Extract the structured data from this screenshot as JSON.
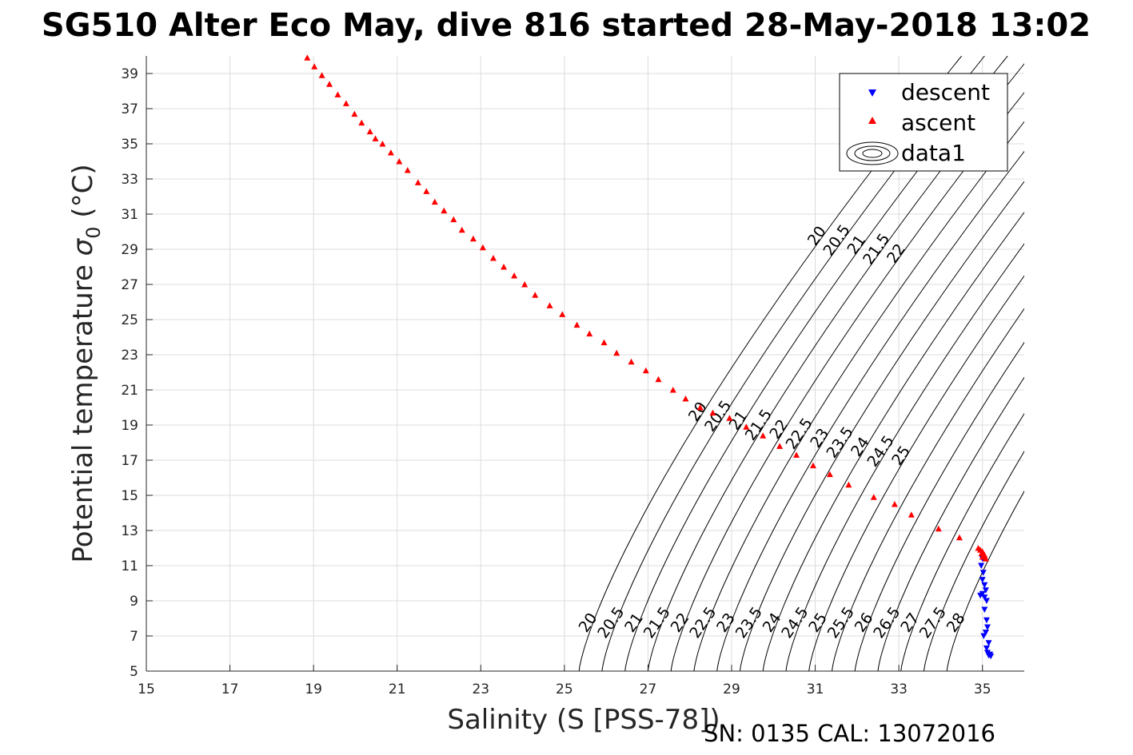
{
  "figure": {
    "title": "SG510 Alter Eco May, dive 816 started 28-May-2018 13:02",
    "footer": "SN: 0135  CAL: 13072016"
  },
  "chart_data": {
    "type": "scatter",
    "xlabel": "Salinity (S [PSS-78])",
    "ylabel_prefix": "Potential temperature ",
    "ylabel_symbol": "σ",
    "ylabel_subscript": "0",
    "ylabel_suffix": " (°C)",
    "xlim": [
      15,
      36
    ],
    "ylim": [
      5,
      40
    ],
    "xticks": [
      15,
      17,
      19,
      21,
      23,
      25,
      27,
      29,
      31,
      33,
      35
    ],
    "yticks": [
      5,
      7,
      9,
      11,
      13,
      15,
      17,
      19,
      21,
      23,
      25,
      27,
      29,
      31,
      33,
      35,
      37,
      39
    ],
    "grid": true,
    "legend_position": "top-right",
    "colors": {
      "descent": "#0000ff",
      "ascent": "#ff0000",
      "contour": "#000000",
      "grid": "#dcdcdc"
    },
    "series": [
      {
        "name": "descent",
        "marker": "triangle-down",
        "color": "#0000ff",
        "points": [
          [
            35.0,
            11.4
          ],
          [
            34.97,
            11.0
          ],
          [
            35.02,
            10.6
          ],
          [
            35.0,
            10.2
          ],
          [
            35.05,
            9.9
          ],
          [
            35.08,
            9.6
          ],
          [
            35.0,
            9.4
          ],
          [
            34.95,
            9.3
          ],
          [
            35.05,
            9.2
          ],
          [
            35.1,
            9.0
          ],
          [
            35.05,
            8.5
          ],
          [
            35.1,
            7.9
          ],
          [
            35.12,
            7.5
          ],
          [
            35.08,
            7.2
          ],
          [
            35.03,
            7.0
          ],
          [
            35.15,
            6.6
          ],
          [
            35.1,
            6.3
          ],
          [
            35.12,
            6.05
          ],
          [
            35.18,
            5.95
          ],
          [
            35.15,
            5.9
          ],
          [
            35.2,
            5.85
          ]
        ]
      },
      {
        "name": "ascent",
        "marker": "triangle-up",
        "color": "#ff0000",
        "points": [
          [
            18.85,
            39.9
          ],
          [
            19.02,
            39.4
          ],
          [
            19.2,
            38.9
          ],
          [
            19.38,
            38.4
          ],
          [
            19.58,
            37.8
          ],
          [
            19.78,
            37.3
          ],
          [
            19.98,
            36.7
          ],
          [
            20.15,
            36.2
          ],
          [
            20.35,
            35.7
          ],
          [
            20.48,
            35.3
          ],
          [
            20.65,
            35.0
          ],
          [
            20.85,
            34.5
          ],
          [
            21.05,
            34.0
          ],
          [
            21.25,
            33.5
          ],
          [
            21.5,
            32.8
          ],
          [
            21.7,
            32.3
          ],
          [
            21.9,
            31.7
          ],
          [
            22.12,
            31.2
          ],
          [
            22.35,
            30.7
          ],
          [
            22.55,
            30.1
          ],
          [
            22.82,
            29.6
          ],
          [
            23.05,
            29.1
          ],
          [
            23.3,
            28.5
          ],
          [
            23.55,
            28.0
          ],
          [
            23.8,
            27.5
          ],
          [
            24.05,
            27.0
          ],
          [
            24.3,
            26.4
          ],
          [
            24.65,
            25.8
          ],
          [
            24.95,
            25.3
          ],
          [
            25.3,
            24.7
          ],
          [
            25.6,
            24.2
          ],
          [
            25.95,
            23.7
          ],
          [
            26.25,
            23.1
          ],
          [
            26.6,
            22.6
          ],
          [
            26.95,
            22.1
          ],
          [
            27.25,
            21.6
          ],
          [
            27.6,
            21.0
          ],
          [
            27.9,
            20.5
          ],
          [
            28.25,
            20.0
          ],
          [
            28.55,
            19.7
          ],
          [
            28.95,
            19.4
          ],
          [
            29.35,
            18.9
          ],
          [
            29.75,
            18.4
          ],
          [
            30.15,
            17.8
          ],
          [
            30.55,
            17.3
          ],
          [
            30.95,
            16.7
          ],
          [
            31.35,
            16.2
          ],
          [
            31.8,
            15.6
          ],
          [
            32.4,
            14.9
          ],
          [
            32.9,
            14.5
          ],
          [
            33.3,
            13.9
          ],
          [
            33.95,
            13.1
          ],
          [
            34.45,
            12.6
          ],
          [
            34.9,
            12.0
          ],
          [
            34.95,
            11.9
          ],
          [
            35.0,
            11.8
          ],
          [
            35.05,
            11.6
          ],
          [
            35.0,
            11.5
          ],
          [
            34.98,
            11.7
          ],
          [
            35.08,
            11.4
          ]
        ]
      }
    ],
    "contours": {
      "name": "data1",
      "label_groups": [
        {
          "where": "bottom",
          "levels": [
            "20",
            "20.5",
            "21",
            "21.5",
            "22",
            "22.5",
            "23",
            "23.5",
            "24",
            "24.5",
            "25",
            "25.5",
            "26",
            "26.5",
            "27",
            "27.5",
            "28"
          ]
        },
        {
          "where": "middle",
          "levels": [
            "20",
            "20.5",
            "21",
            "21.5",
            "22",
            "22.5",
            "23",
            "23.5",
            "24",
            "24.5",
            "25"
          ]
        },
        {
          "where": "top",
          "levels": [
            "20",
            "20.5",
            "21",
            "21.5",
            "22"
          ]
        }
      ]
    }
  }
}
